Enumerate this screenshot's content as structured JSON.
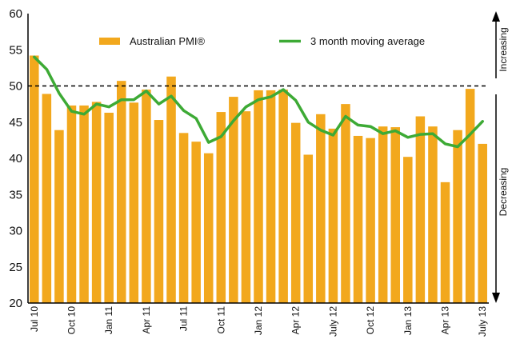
{
  "chart_data": {
    "type": "bar",
    "ylim": [
      20,
      60
    ],
    "yticks": [
      "20",
      "25",
      "30",
      "35",
      "40",
      "45",
      "50",
      "55",
      "60"
    ],
    "threshold": 50,
    "x_tick_labels": [
      "Jul 10",
      "Oct 10",
      "Jan 11",
      "Apr 11",
      "Jul 11",
      "Oct 11",
      "Jan 12",
      "Apr 12",
      "July 12",
      "Oct 12",
      "Jan 13",
      "Apr 13",
      "July 13"
    ],
    "categories": [
      "Jul 10",
      "Aug 10",
      "Sep 10",
      "Oct 10",
      "Nov 10",
      "Dec 10",
      "Jan 11",
      "Feb 11",
      "Mar 11",
      "Apr 11",
      "May 11",
      "Jun 11",
      "Jul 11",
      "Aug 11",
      "Sep 11",
      "Oct 11",
      "Nov 11",
      "Dec 11",
      "Jan 12",
      "Feb 12",
      "Mar 12",
      "Apr 12",
      "May 12",
      "Jun 12",
      "July 12",
      "Aug 12",
      "Sep 12",
      "Oct 12",
      "Nov 12",
      "Dec 12",
      "Jan 13",
      "Feb 13",
      "Mar 13",
      "Apr 13",
      "May 13",
      "Jun 13",
      "July 13"
    ],
    "series": [
      {
        "name": "Australian PMI®",
        "kind": "bar",
        "color": "#F2A81D",
        "values": [
          54.2,
          48.9,
          43.9,
          47.3,
          47.3,
          47.8,
          46.3,
          50.7,
          47.7,
          49.5,
          45.3,
          51.3,
          43.5,
          42.3,
          40.7,
          46.4,
          48.5,
          46.5,
          49.4,
          49.4,
          49.5,
          44.9,
          40.5,
          46.1,
          44.1,
          47.5,
          43.1,
          42.8,
          44.4,
          44.3,
          40.2,
          45.8,
          44.4,
          36.7,
          43.9,
          49.6,
          42.0
        ]
      },
      {
        "name": "3 month moving average",
        "kind": "line",
        "color": "#3DAA35",
        "values": [
          54.0,
          52.3,
          49.0,
          46.5,
          46.1,
          47.5,
          47.1,
          48.1,
          48.1,
          49.3,
          47.5,
          48.6,
          46.6,
          45.5,
          42.2,
          43.0,
          45.2,
          47.1,
          48.1,
          48.5,
          49.5,
          48.0,
          45.0,
          43.9,
          43.2,
          45.8,
          44.6,
          44.4,
          43.4,
          43.8,
          42.9,
          43.3,
          43.4,
          42.0,
          41.6,
          43.3,
          45.1
        ]
      }
    ],
    "side_labels": {
      "top": "Increasing",
      "bottom": "Decreasing"
    }
  }
}
